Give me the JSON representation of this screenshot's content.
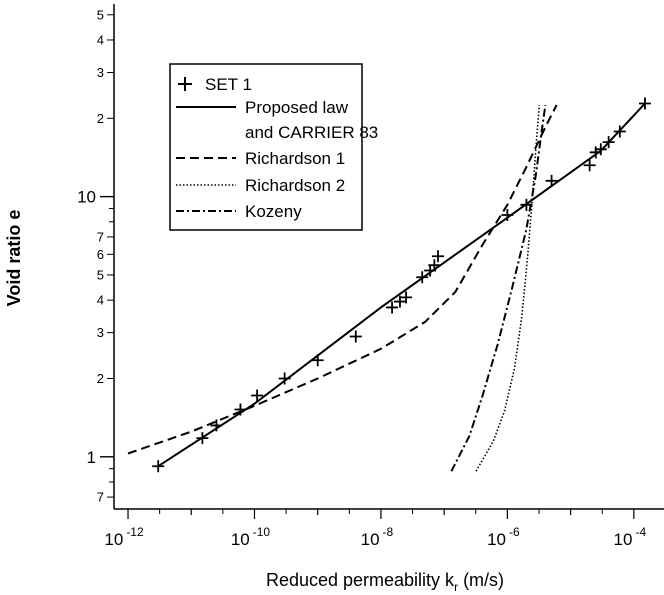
{
  "chart_data": {
    "type": "scatter",
    "xlabel": "Reduced permeability k",
    "xlabel_sub": "r",
    "xlabel_unit": " (m/s)",
    "ylabel": "Void ratio e",
    "x_scale": "log",
    "y_scale": "log",
    "xlim": [
      6e-13,
      0.0003
    ],
    "ylim": [
      0.63,
      55
    ],
    "x_ticks": [
      {
        "value": 1e-12,
        "base": "10",
        "exp": "-12"
      },
      {
        "value": 1e-10,
        "base": "10",
        "exp": "-10"
      },
      {
        "value": 1e-08,
        "base": "10",
        "exp": "-8"
      },
      {
        "value": 1e-06,
        "base": "10",
        "exp": "-6"
      },
      {
        "value": 0.0001,
        "base": "10",
        "exp": "-4"
      }
    ],
    "y_major_ticks": [
      {
        "value": 1,
        "label": "1"
      },
      {
        "value": 10,
        "label": "10"
      }
    ],
    "y_minor_labels": [
      {
        "value": 0.7,
        "label": "7"
      },
      {
        "value": 2,
        "label": "2"
      },
      {
        "value": 3,
        "label": "3"
      },
      {
        "value": 4,
        "label": "4"
      },
      {
        "value": 5,
        "label": "5"
      },
      {
        "value": 6,
        "label": "6"
      },
      {
        "value": 7,
        "label": "7"
      },
      {
        "value": 20,
        "label": "2"
      },
      {
        "value": 30,
        "label": "3"
      },
      {
        "value": 40,
        "label": "4"
      },
      {
        "value": 50,
        "label": "5"
      }
    ],
    "legend_position": "top-left",
    "series": [
      {
        "name": "SET 1",
        "style": "markers",
        "marker": "+",
        "points": [
          [
            3e-12,
            0.92
          ],
          [
            1.5e-11,
            1.18
          ],
          [
            2.5e-11,
            1.32
          ],
          [
            6e-11,
            1.52
          ],
          [
            1.1e-10,
            1.72
          ],
          [
            3e-10,
            2.0
          ],
          [
            1e-09,
            2.35
          ],
          [
            4e-09,
            2.9
          ],
          [
            1.5e-08,
            3.75
          ],
          [
            2e-08,
            3.95
          ],
          [
            2.5e-08,
            4.1
          ],
          [
            4.5e-08,
            4.9
          ],
          [
            6e-08,
            5.2
          ],
          [
            7e-08,
            5.45
          ],
          [
            8e-08,
            5.9
          ],
          [
            1e-06,
            8.5
          ],
          [
            2e-06,
            9.3
          ],
          [
            5e-06,
            11.5
          ],
          [
            2e-05,
            13.2
          ],
          [
            2.5e-05,
            14.8
          ],
          [
            3e-05,
            15.2
          ],
          [
            4e-05,
            16.2
          ],
          [
            6e-05,
            17.8
          ],
          [
            0.00015,
            22.8
          ]
        ]
      },
      {
        "name": "Proposed law",
        "name_line2": "and CARRIER 83",
        "style": "solid",
        "points": [
          [
            3e-12,
            0.92
          ],
          [
            1e-10,
            1.6
          ],
          [
            1e-08,
            3.75
          ],
          [
            1e-06,
            8.3
          ],
          [
            3e-05,
            15.0
          ],
          [
            0.00015,
            22.8
          ]
        ]
      },
      {
        "name": "Richardson 1",
        "style": "dashed",
        "points": [
          [
            1e-12,
            1.03
          ],
          [
            1e-11,
            1.25
          ],
          [
            1e-10,
            1.57
          ],
          [
            1e-09,
            2.0
          ],
          [
            1e-08,
            2.6
          ],
          [
            5e-08,
            3.3
          ],
          [
            1.5e-07,
            4.3
          ],
          [
            4e-07,
            6.5
          ],
          [
            1e-06,
            9.3
          ],
          [
            2e-06,
            13.0
          ],
          [
            4e-06,
            18.5
          ],
          [
            6e-06,
            22.5
          ]
        ]
      },
      {
        "name": "Richardson 2",
        "style": "dotted",
        "points": [
          [
            3.2e-07,
            0.88
          ],
          [
            6e-07,
            1.15
          ],
          [
            9e-07,
            1.5
          ],
          [
            1.3e-06,
            2.2
          ],
          [
            1.7e-06,
            3.5
          ],
          [
            2.1e-06,
            6
          ],
          [
            2.5e-06,
            10
          ],
          [
            2.8e-06,
            15
          ],
          [
            3.2e-06,
            22.5
          ]
        ]
      },
      {
        "name": "Kozeny",
        "style": "dashdot",
        "points": [
          [
            1.3e-07,
            0.88
          ],
          [
            2.5e-07,
            1.2
          ],
          [
            4e-07,
            1.7
          ],
          [
            7e-07,
            2.7
          ],
          [
            1.2e-06,
            4.5
          ],
          [
            2e-06,
            7.5
          ],
          [
            2.8e-06,
            12
          ],
          [
            3.5e-06,
            18
          ],
          [
            4e-06,
            22.5
          ]
        ]
      }
    ]
  }
}
